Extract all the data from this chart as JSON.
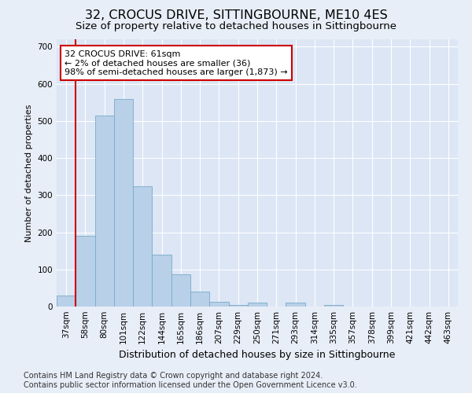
{
  "title": "32, CROCUS DRIVE, SITTINGBOURNE, ME10 4ES",
  "subtitle": "Size of property relative to detached houses in Sittingbourne",
  "xlabel": "Distribution of detached houses by size in Sittingbourne",
  "ylabel": "Number of detached properties",
  "categories": [
    "37sqm",
    "58sqm",
    "80sqm",
    "101sqm",
    "122sqm",
    "144sqm",
    "165sqm",
    "186sqm",
    "207sqm",
    "229sqm",
    "250sqm",
    "271sqm",
    "293sqm",
    "314sqm",
    "335sqm",
    "357sqm",
    "378sqm",
    "399sqm",
    "421sqm",
    "442sqm",
    "463sqm"
  ],
  "values": [
    30,
    190,
    515,
    560,
    325,
    140,
    87,
    40,
    13,
    5,
    10,
    0,
    10,
    0,
    5,
    0,
    0,
    0,
    0,
    0,
    0
  ],
  "bar_color": "#b8d0e8",
  "bar_edge_color": "#7aaac8",
  "vline_x_index": 1,
  "vline_color": "#cc0000",
  "annotation_line1": "32 CROCUS DRIVE: 61sqm",
  "annotation_line2": "← 2% of detached houses are smaller (36)",
  "annotation_line3": "98% of semi-detached houses are larger (1,873) →",
  "annotation_box_color": "#ffffff",
  "annotation_box_edge": "#cc0000",
  "ylim": [
    0,
    720
  ],
  "yticks": [
    0,
    100,
    200,
    300,
    400,
    500,
    600,
    700
  ],
  "bg_color": "#e8eef7",
  "plot_bg_color": "#dce6f5",
  "grid_color": "#ffffff",
  "footer": "Contains HM Land Registry data © Crown copyright and database right 2024.\nContains public sector information licensed under the Open Government Licence v3.0.",
  "title_fontsize": 11.5,
  "subtitle_fontsize": 9.5,
  "xlabel_fontsize": 9,
  "ylabel_fontsize": 8,
  "tick_fontsize": 7.5,
  "annotation_fontsize": 8,
  "footer_fontsize": 7
}
